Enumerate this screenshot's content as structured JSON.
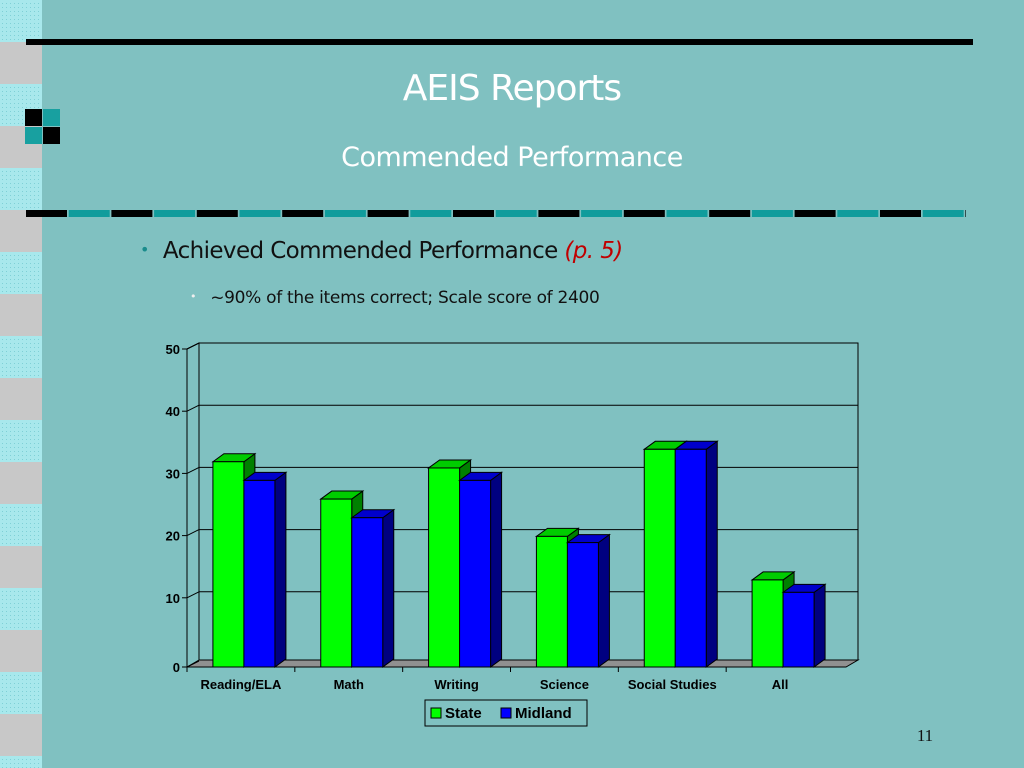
{
  "slide": {
    "title": "AEIS Reports",
    "subtitle": "Commended Performance",
    "bullet_main": "Achieved Commended Performance ",
    "bullet_main_ref": "(p. 5)",
    "bullet_sub": "~90% of the items correct; Scale score of 2400",
    "page_number": "11"
  },
  "colors": {
    "background": "#80c1c1",
    "state": "#00ff00",
    "midland": "#0000ff"
  },
  "chart_data": {
    "type": "bar",
    "categories": [
      "Reading/ELA",
      "Math",
      "Writing",
      "Science",
      "Social Studies",
      "All"
    ],
    "series": [
      {
        "name": "State",
        "values": [
          33,
          27,
          32,
          21,
          35,
          14
        ]
      },
      {
        "name": "Midland",
        "values": [
          30,
          24,
          30,
          20,
          35,
          12
        ]
      }
    ],
    "ylim": [
      0,
      50
    ],
    "yticks": [
      "0",
      "10",
      "20",
      "30",
      "40",
      "50"
    ],
    "legend_position": "bottom",
    "grid": true,
    "style": "3d-clustered"
  }
}
